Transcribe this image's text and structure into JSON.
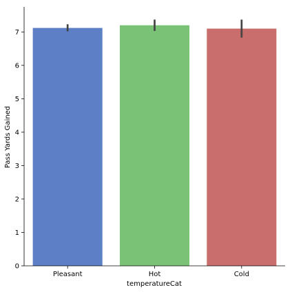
{
  "chart_data": {
    "type": "bar",
    "xlabel": "temperatureCat",
    "ylabel": "Pass Yards Gained",
    "categories": [
      "Pleasant",
      "Hot",
      "Cold"
    ],
    "values": [
      7.12,
      7.2,
      7.1
    ],
    "error_bars": [
      {
        "low": 7.02,
        "high": 7.23
      },
      {
        "low": 7.03,
        "high": 7.37
      },
      {
        "low": 6.83,
        "high": 7.37
      }
    ],
    "colors": [
      "#5d7fc5",
      "#79c276",
      "#c96e6c"
    ],
    "error_bar_color": "#444444",
    "ylim": [
      0,
      7.75
    ],
    "yticks": [
      0,
      1,
      2,
      3,
      4,
      5,
      6,
      7
    ],
    "grid": false,
    "spines": [
      "left",
      "bottom"
    ]
  }
}
